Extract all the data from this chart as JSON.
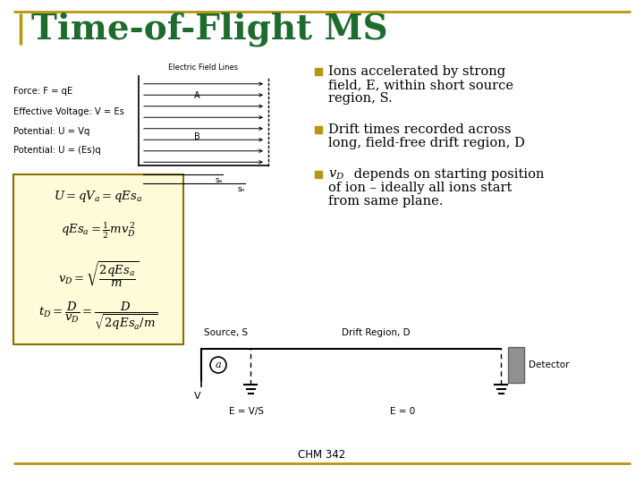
{
  "title": "Time-of-Flight MS",
  "title_color": "#1E6B2E",
  "title_fontsize": 28,
  "bg_color": "#FFFFFF",
  "border_color": "#B8960B",
  "footer_text": "CHM 342",
  "bullet_color": "#B8960B",
  "bullet1_line1": "Ions accelerated by strong",
  "bullet1_line2": "field, E, within short source",
  "bullet1_line3": "region, S.",
  "bullet2_line1": "Drift times recorded across",
  "bullet2_line2": "long, field-free drift region, D",
  "bullet3_line1_pre": "v",
  "bullet3_line1_sub": "D",
  "bullet3_line1_post": " depends on starting position",
  "bullet3_line2": "of ion – ideally all ions start",
  "bullet3_line3": "from same plane.",
  "left_labels": [
    "Force: F = qE",
    "Effective Voltage: V = Es",
    "Potential: U = Vq",
    "Potential: U = (Es)q"
  ],
  "field_lines_label": "Electric Field Lines",
  "source_label": "Source, S",
  "drift_label": "Drift Region, D",
  "detector_label": "Detector",
  "evs_label": "E = V/S",
  "e0_label": "E = 0",
  "v_label": "V"
}
